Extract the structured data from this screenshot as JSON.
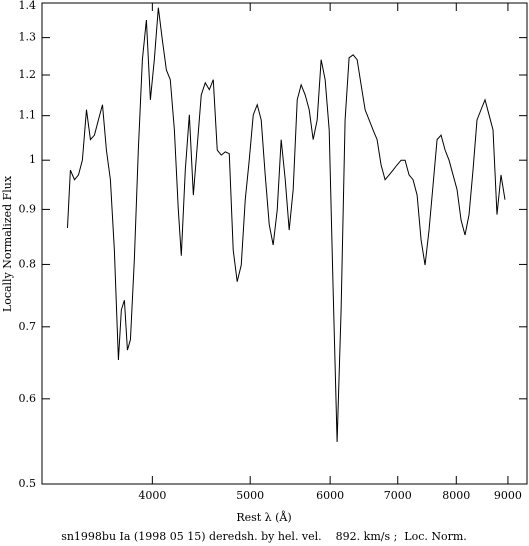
{
  "chart_data": {
    "type": "line",
    "xlabel": "Rest λ (Å)",
    "ylabel": "Locally Normalized Flux",
    "caption": "sn1998bu Ia (1998 05 15) deredsh. by hel. vel.    892. km/s ;  Loc. Norm.",
    "xscale": "log",
    "yscale": "log",
    "xlim": [
      3110,
      9400
    ],
    "ylim": [
      0.5,
      1.4
    ],
    "xticks": [
      4000,
      5000,
      6000,
      7000,
      8000,
      9000
    ],
    "yticks": [
      0.5,
      0.6,
      0.7,
      0.8,
      0.9,
      1,
      1.1,
      1.2,
      1.3,
      1.4
    ],
    "series": [
      {
        "color": "#000000",
        "x": [
          3296,
          3318,
          3349,
          3380,
          3410,
          3442,
          3473,
          3505,
          3537,
          3570,
          3602,
          3635,
          3668,
          3702,
          3727,
          3753,
          3779,
          3805,
          3839,
          3874,
          3910,
          3946,
          3982,
          4018,
          4055,
          4092,
          4130,
          4167,
          4206,
          4244,
          4273,
          4312,
          4352,
          4392,
          4432,
          4472,
          4513,
          4555,
          4596,
          4638,
          4681,
          4724,
          4767,
          4810,
          4854,
          4899,
          4944,
          4989,
          5035,
          5081,
          5127,
          5174,
          5222,
          5269,
          5318,
          5366,
          5416,
          5465,
          5515,
          5566,
          5616,
          5668,
          5720,
          5772,
          5825,
          5878,
          5932,
          5987,
          6041,
          6096,
          6152,
          6208,
          6265,
          6323,
          6381,
          6439,
          6498,
          6558,
          6617,
          6678,
          6739,
          6801,
          6864,
          6926,
          6990,
          7054,
          7118,
          7183,
          7249,
          7316,
          7383,
          7450,
          7518,
          7587,
          7657,
          7727,
          7798,
          7869,
          7941,
          8014,
          8087,
          8161,
          8236,
          8311,
          8387,
          8464,
          8542,
          8620,
          8699,
          8778,
          8859,
          8940
        ],
        "values": [
          0.865,
          0.979,
          0.959,
          0.969,
          1.0,
          1.114,
          1.045,
          1.055,
          1.09,
          1.126,
          1.022,
          0.959,
          0.825,
          0.652,
          0.726,
          0.741,
          0.666,
          0.681,
          0.808,
          1.022,
          1.24,
          1.35,
          1.138,
          1.24,
          1.386,
          1.294,
          1.213,
          1.188,
          1.067,
          0.899,
          0.815,
          0.979,
          1.102,
          0.928,
          1.033,
          1.15,
          1.18,
          1.163,
          1.188,
          1.022,
          1.011,
          1.018,
          1.014,
          0.825,
          0.771,
          0.799,
          0.919,
          1.0,
          1.102,
          1.126,
          1.09,
          0.969,
          0.871,
          0.834,
          0.899,
          1.045,
          0.959,
          0.861,
          0.939,
          1.138,
          1.175,
          1.15,
          1.114,
          1.045,
          1.09,
          1.24,
          1.188,
          1.067,
          0.758,
          0.547,
          0.726,
          1.09,
          1.245,
          1.253,
          1.24,
          1.175,
          1.114,
          1.09,
          1.067,
          1.045,
          0.99,
          0.959,
          0.969,
          0.979,
          0.99,
          1.0,
          1.0,
          0.969,
          0.959,
          0.928,
          0.843,
          0.799,
          0.861,
          0.948,
          1.045,
          1.055,
          1.022,
          1.0,
          0.969,
          0.939,
          0.88,
          0.852,
          0.89,
          0.979,
          1.09,
          1.114,
          1.138,
          1.102,
          1.067,
          0.89,
          0.969,
          0.919
        ]
      }
    ]
  }
}
